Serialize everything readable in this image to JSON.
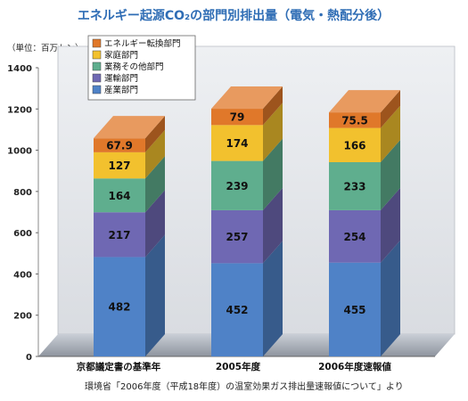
{
  "chart_data": {
    "type": "bar",
    "stacked": true,
    "title": "エネルギー起源CO₂の部門別排出量（電気・熱配分後）",
    "unit_label": "（単位：百万トン）",
    "categories": [
      "京都議定書の基準年",
      "2005年度",
      "2006年度速報値"
    ],
    "series": [
      {
        "name": "産業部門",
        "values": [
          482,
          452,
          455
        ],
        "color": "#4f82c7"
      },
      {
        "name": "運輸部門",
        "values": [
          217,
          257,
          254
        ],
        "color": "#6f68b3"
      },
      {
        "name": "業務その他部門",
        "values": [
          164,
          239,
          233
        ],
        "color": "#5fae8e"
      },
      {
        "name": "家庭部門",
        "values": [
          127,
          174,
          166
        ],
        "color": "#f2c12e"
      },
      {
        "name": "エネルギー転換部門",
        "values": [
          67.9,
          79,
          75.5
        ],
        "color": "#e0782a"
      }
    ],
    "value_labels": [
      [
        "482",
        "452",
        "455"
      ],
      [
        "217",
        "257",
        "254"
      ],
      [
        "164",
        "239",
        "233"
      ],
      [
        "127",
        "174",
        "166"
      ],
      [
        "67.9",
        "79",
        "75.5"
      ]
    ],
    "yticks": [
      "0",
      "200",
      "400",
      "600",
      "800",
      "1000",
      "1200",
      "1400"
    ],
    "ylim": [
      0,
      1400
    ],
    "grid": false,
    "legend_position": "top-left",
    "source_note": "環境省「2006年度（平成18年度）の温室効果ガス排出量速報値について」より"
  }
}
